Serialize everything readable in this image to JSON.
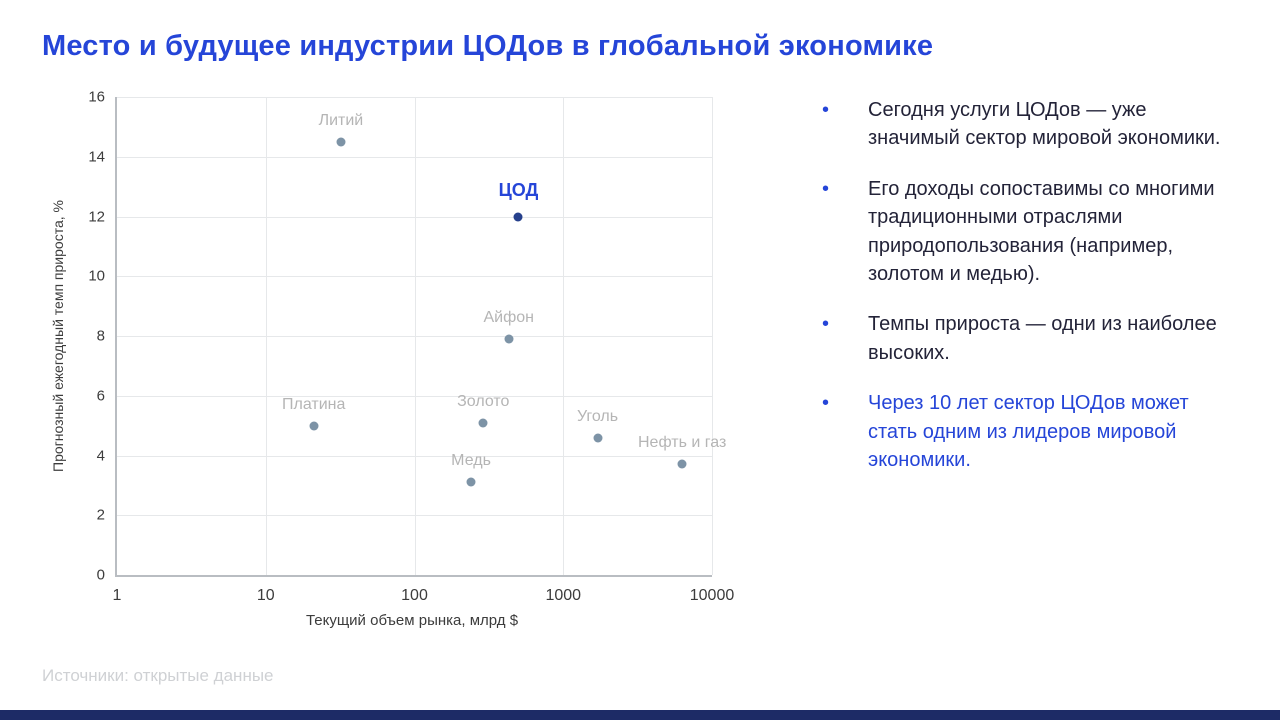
{
  "slide": {
    "title": "Место и будущее индустрии ЦОДов в глобальной экономике",
    "source_note": "Источники: открытые данные",
    "bullet_char": "•",
    "accent_color": "#2545d8",
    "footer_color": "#1d2b66"
  },
  "chart_data": {
    "type": "scatter",
    "title": "",
    "xlabel": "Текущий объем рынка, млрд $",
    "ylabel": "Прогнозный ежегодный темп прироста, %",
    "x_scale": "log",
    "xlim": [
      1,
      10000
    ],
    "ylim": [
      0,
      16
    ],
    "x_ticks": [
      1,
      10,
      100,
      1000,
      10000
    ],
    "y_ticks": [
      0,
      2,
      4,
      6,
      8,
      10,
      12,
      14,
      16
    ],
    "grid": true,
    "point_color": "#7d93a6",
    "label_color": "#b5b5b5",
    "highlight_color": "#2545d8",
    "points": [
      {
        "label": "Литий",
        "x": 32,
        "y": 14.5,
        "highlight": false
      },
      {
        "label": "ЦОД",
        "x": 500,
        "y": 12.0,
        "highlight": true
      },
      {
        "label": "Айфон",
        "x": 430,
        "y": 7.9,
        "highlight": false
      },
      {
        "label": "Платина",
        "x": 21,
        "y": 5.0,
        "highlight": false
      },
      {
        "label": "Золото",
        "x": 290,
        "y": 5.1,
        "highlight": false
      },
      {
        "label": "Уголь",
        "x": 1700,
        "y": 4.6,
        "highlight": false
      },
      {
        "label": "Медь",
        "x": 240,
        "y": 3.1,
        "highlight": false
      },
      {
        "label": "Нефть и газ",
        "x": 6300,
        "y": 3.7,
        "highlight": false
      }
    ]
  },
  "bullets": [
    {
      "text": "Сегодня услуги ЦОДов — уже значимый сектор мировой экономики.",
      "emphasis": false
    },
    {
      "text": "Его доходы сопоставимы со многими традиционными отраслями природопользования (например, золотом и медью).",
      "emphasis": false
    },
    {
      "text": "Темпы прироста — одни из наиболее высоких.",
      "emphasis": false
    },
    {
      "text": "Через 10 лет сектор ЦОДов может стать одним из лидеров мировой экономики.",
      "emphasis": true
    }
  ]
}
